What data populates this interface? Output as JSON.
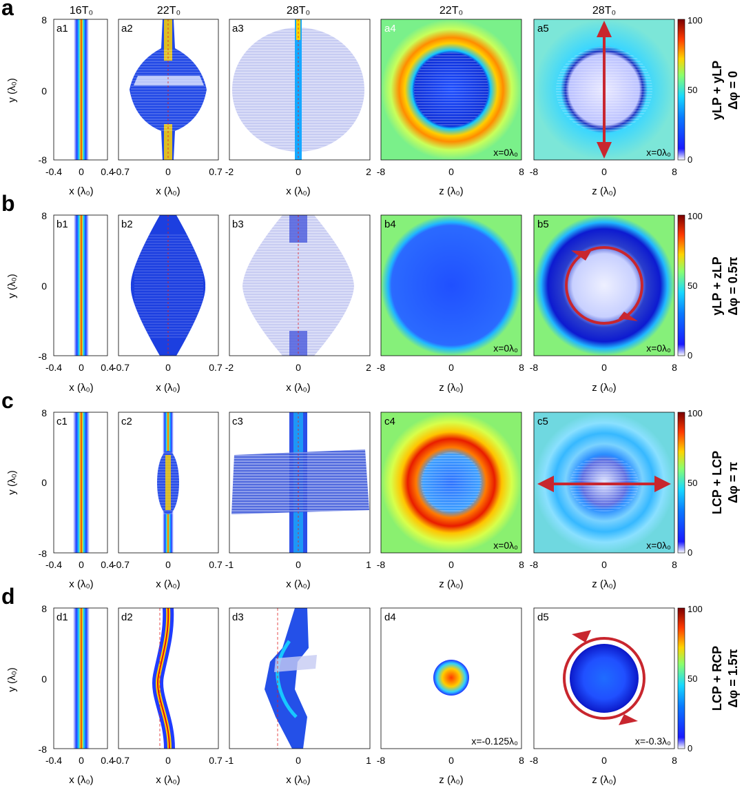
{
  "figure": {
    "column_titles": [
      "16T₀",
      "22T₀",
      "28T₀",
      "22T₀",
      "28T₀"
    ],
    "y_axis_label": "y (λ₀)",
    "colorbar_ticks": [
      "100",
      "50",
      "0"
    ],
    "rows": [
      {
        "letter": "a",
        "side_label_top": "yLP + yLP",
        "side_label_bottom": "Δφ = 0",
        "y_ticks": [
          "8",
          "0",
          "-8"
        ],
        "panels": [
          {
            "id": "a1",
            "x_ticks": [
              "-0.4",
              "0",
              "0.4"
            ],
            "x_label": "x (λ₀)"
          },
          {
            "id": "a2",
            "x_ticks": [
              "-0.7",
              "0",
              "0.7"
            ],
            "x_label": "x (λ₀)"
          },
          {
            "id": "a3",
            "x_ticks": [
              "-2",
              "0",
              "2"
            ],
            "x_label": "x (λ₀)"
          },
          {
            "id": "a4",
            "x_ticks": [
              "-8",
              "0",
              "8"
            ],
            "x_label": "z (λ₀)",
            "pos_label": "x=0λ₀"
          },
          {
            "id": "a5",
            "x_ticks": [
              "-8",
              "0",
              "8"
            ],
            "x_label": "z (λ₀)",
            "pos_label": "x=0λ₀"
          }
        ]
      },
      {
        "letter": "b",
        "side_label_top": "yLP + zLP",
        "side_label_bottom": "Δφ = 0.5π",
        "y_ticks": [
          "8",
          "0",
          "-8"
        ],
        "panels": [
          {
            "id": "b1",
            "x_ticks": [
              "-0.4",
              "0",
              "0.4"
            ],
            "x_label": "x (λ₀)"
          },
          {
            "id": "b2",
            "x_ticks": [
              "-0.7",
              "0",
              "0.7"
            ],
            "x_label": "x (λ₀)"
          },
          {
            "id": "b3",
            "x_ticks": [
              "-2",
              "0",
              "2"
            ],
            "x_label": "x (λ₀)"
          },
          {
            "id": "b4",
            "x_ticks": [
              "-8",
              "0",
              "8"
            ],
            "x_label": "z (λ₀)",
            "pos_label": "x=0λ₀"
          },
          {
            "id": "b5",
            "x_ticks": [
              "-8",
              "0",
              "8"
            ],
            "x_label": "z (λ₀)",
            "pos_label": "x=0λ₀"
          }
        ]
      },
      {
        "letter": "c",
        "side_label_top": "LCP + LCP",
        "side_label_bottom": "Δφ = π",
        "y_ticks": [
          "8",
          "0",
          "-8"
        ],
        "panels": [
          {
            "id": "c1",
            "x_ticks": [
              "-0.4",
              "0",
              "0.4"
            ],
            "x_label": "x (λ₀)"
          },
          {
            "id": "c2",
            "x_ticks": [
              "-0.7",
              "0",
              "0.7"
            ],
            "x_label": "x (λ₀)"
          },
          {
            "id": "c3",
            "x_ticks": [
              "-1",
              "0",
              "1"
            ],
            "x_label": "x (λ₀)"
          },
          {
            "id": "c4",
            "x_ticks": [
              "-8",
              "0",
              "8"
            ],
            "x_label": "z (λ₀)",
            "pos_label": "x=0λ₀"
          },
          {
            "id": "c5",
            "x_ticks": [
              "-8",
              "0",
              "8"
            ],
            "x_label": "z (λ₀)",
            "pos_label": "x=0λ₀"
          }
        ]
      },
      {
        "letter": "d",
        "side_label_top": "LCP + RCP",
        "side_label_bottom": "Δφ = 1.5π",
        "y_ticks": [
          "8",
          "0",
          "-8"
        ],
        "panels": [
          {
            "id": "d1",
            "x_ticks": [
              "-0.4",
              "0",
              "0.4"
            ],
            "x_label": "x (λ₀)"
          },
          {
            "id": "d2",
            "x_ticks": [
              "-0.7",
              "0",
              "0.7"
            ],
            "x_label": "x (λ₀)"
          },
          {
            "id": "d3",
            "x_ticks": [
              "-1",
              "0",
              "1"
            ],
            "x_label": "x (λ₀)"
          },
          {
            "id": "d4",
            "x_ticks": [
              "-8",
              "0",
              "8"
            ],
            "x_label": "z (λ₀)",
            "pos_label": "x=-0.125λ₀"
          },
          {
            "id": "d5",
            "x_ticks": [
              "-8",
              "0",
              "8"
            ],
            "x_label": "z (λ₀)",
            "pos_label": "x=-0.3λ₀"
          }
        ]
      }
    ]
  }
}
